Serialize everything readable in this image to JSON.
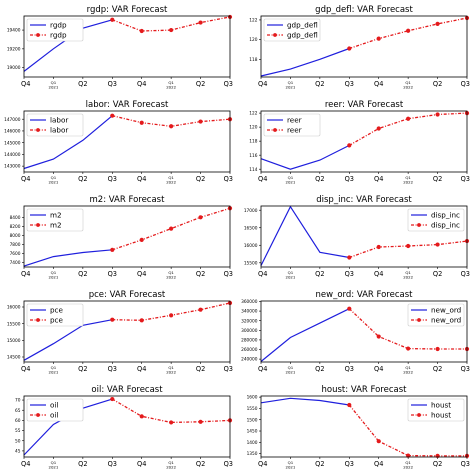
{
  "figure": {
    "x_tick_labels": [
      "Q4",
      "Q1",
      "Q2",
      "Q3",
      "Q4",
      "Q1",
      "Q2",
      "Q3"
    ],
    "x_tick_sublabels": [
      "",
      "Q1\n2021",
      "",
      "",
      "",
      "Q1\n2022",
      "",
      ""
    ],
    "colors": {
      "history": "#1f1fdd",
      "forecast": "#e41a1c"
    }
  },
  "chart_data": [
    {
      "type": "line",
      "title": "rgdp: VAR Forecast",
      "ylim": [
        18900,
        19550
      ],
      "yticks": [
        18800,
        19000,
        19200,
        19400
      ],
      "legend_position": "top-left",
      "series": [
        {
          "name": "rgdp",
          "style": "solid",
          "x": [
            0,
            1,
            2,
            3
          ],
          "values": [
            18960,
            19200,
            19420,
            19510
          ]
        },
        {
          "name": "rgdp",
          "style": "dashed-dot",
          "x": [
            3,
            4,
            5,
            6,
            7
          ],
          "values": [
            19510,
            19390,
            19400,
            19480,
            19540
          ]
        }
      ]
    },
    {
      "type": "line",
      "title": "gdp_defl: VAR Forecast",
      "ylim": [
        116.2,
        122.4
      ],
      "yticks": [
        116,
        118,
        120,
        122
      ],
      "legend_position": "top-left",
      "series": [
        {
          "name": "gdp_defl",
          "style": "solid",
          "x": [
            0,
            1,
            2,
            3
          ],
          "values": [
            116.3,
            117.0,
            118.0,
            119.1
          ]
        },
        {
          "name": "gdp_defl",
          "style": "dashed-dot",
          "x": [
            3,
            4,
            5,
            6,
            7
          ],
          "values": [
            119.1,
            120.1,
            120.9,
            121.6,
            122.2
          ]
        }
      ]
    },
    {
      "type": "line",
      "title": "labor: VAR Forecast",
      "ylim": [
        142500,
        147700
      ],
      "yticks": [
        143000,
        144000,
        145000,
        146000,
        147000
      ],
      "legend_position": "top-left",
      "series": [
        {
          "name": "labor",
          "style": "solid",
          "x": [
            0,
            1,
            2,
            3
          ],
          "values": [
            142800,
            143600,
            145200,
            147300
          ]
        },
        {
          "name": "labor",
          "style": "dashed-dot",
          "x": [
            3,
            4,
            5,
            6,
            7
          ],
          "values": [
            147300,
            146700,
            146400,
            146800,
            147000
          ]
        }
      ]
    },
    {
      "type": "line",
      "title": "reer: VAR Forecast",
      "ylim": [
        113.6,
        122.3
      ],
      "yticks": [
        114,
        116,
        118,
        120,
        122
      ],
      "legend_position": "top-left",
      "series": [
        {
          "name": "reer",
          "style": "solid",
          "x": [
            0,
            1,
            2,
            3
          ],
          "values": [
            115.5,
            114.0,
            115.3,
            117.4
          ]
        },
        {
          "name": "reer",
          "style": "dashed-dot",
          "x": [
            3,
            4,
            5,
            6,
            7
          ],
          "values": [
            117.4,
            119.8,
            121.2,
            121.8,
            122.0
          ]
        }
      ]
    },
    {
      "type": "line",
      "title": "m2: VAR Forecast",
      "ylim": [
        7300,
        8650
      ],
      "yticks": [
        7400,
        7600,
        7800,
        8000,
        8200,
        8400
      ],
      "legend_position": "top-left",
      "series": [
        {
          "name": "m2",
          "style": "solid",
          "x": [
            0,
            1,
            2,
            3
          ],
          "values": [
            7320,
            7530,
            7620,
            7680
          ]
        },
        {
          "name": "m2",
          "style": "dashed-dot",
          "x": [
            3,
            4,
            5,
            6,
            7
          ],
          "values": [
            7680,
            7900,
            8150,
            8400,
            8600
          ]
        }
      ]
    },
    {
      "type": "line",
      "title": "disp_inc: VAR Forecast",
      "ylim": [
        15380,
        17120
      ],
      "yticks": [
        15500,
        16000,
        16500,
        17000
      ],
      "legend_position": "top-right",
      "series": [
        {
          "name": "disp_inc",
          "style": "solid",
          "x": [
            0,
            1,
            2,
            3
          ],
          "values": [
            15420,
            17100,
            15800,
            15650
          ]
        },
        {
          "name": "disp_inc",
          "style": "dashed-dot",
          "x": [
            3,
            4,
            5,
            6,
            7
          ],
          "values": [
            15650,
            15950,
            15980,
            16020,
            16120
          ]
        }
      ]
    },
    {
      "type": "line",
      "title": "pce: VAR Forecast",
      "ylim": [
        14350,
        16180
      ],
      "yticks": [
        14500,
        15000,
        15500,
        16000
      ],
      "legend_position": "top-left",
      "series": [
        {
          "name": "pce",
          "style": "solid",
          "x": [
            0,
            1,
            2,
            3
          ],
          "values": [
            14400,
            14900,
            15450,
            15620
          ]
        },
        {
          "name": "pce",
          "style": "dashed-dot",
          "x": [
            3,
            4,
            5,
            6,
            7
          ],
          "values": [
            15620,
            15600,
            15750,
            15920,
            16120
          ]
        }
      ]
    },
    {
      "type": "line",
      "title": "new_ord: VAR Forecast",
      "ylim": [
        234000,
        361000
      ],
      "yticks": [
        240000,
        260000,
        280000,
        300000,
        320000,
        340000,
        360000
      ],
      "legend_position": "top-right",
      "series": [
        {
          "name": "new_ord",
          "style": "solid",
          "x": [
            0,
            1,
            2,
            3
          ],
          "values": [
            235000,
            285000,
            315000,
            345000
          ]
        },
        {
          "name": "new_ord",
          "style": "dashed-dot",
          "x": [
            3,
            4,
            5,
            6,
            7
          ],
          "values": [
            345000,
            287000,
            262000,
            261000,
            261000
          ]
        }
      ]
    },
    {
      "type": "line",
      "title": "oil: VAR Forecast",
      "ylim": [
        42,
        72
      ],
      "yticks": [
        45,
        50,
        55,
        60,
        65,
        70
      ],
      "legend_position": "top-left",
      "series": [
        {
          "name": "oil",
          "style": "solid",
          "x": [
            0,
            1,
            2,
            3
          ],
          "values": [
            43,
            58,
            66,
            70.5
          ]
        },
        {
          "name": "oil",
          "style": "dashed-dot",
          "x": [
            3,
            4,
            5,
            6,
            7
          ],
          "values": [
            70.5,
            62,
            59,
            59.3,
            60
          ]
        }
      ]
    },
    {
      "type": "line",
      "title": "houst: VAR Forecast",
      "ylim": [
        1335,
        1605
      ],
      "yticks": [
        1350,
        1400,
        1450,
        1500,
        1550,
        1600
      ],
      "legend_position": "top-right",
      "series": [
        {
          "name": "houst",
          "style": "solid",
          "x": [
            0,
            1,
            2,
            3
          ],
          "values": [
            1575,
            1595,
            1585,
            1565
          ]
        },
        {
          "name": "houst",
          "style": "dashed-dot",
          "x": [
            3,
            4,
            5,
            6,
            7
          ],
          "values": [
            1565,
            1405,
            1341,
            1340,
            1340
          ]
        }
      ]
    }
  ]
}
